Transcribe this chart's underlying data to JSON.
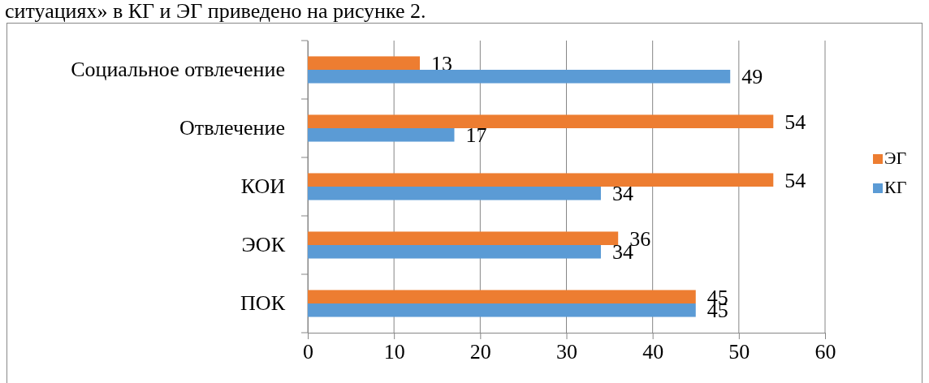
{
  "chart_data": {
    "type": "bar",
    "orientation": "horizontal",
    "annotations": [
      "ситуациях» в КГ и ЭГ приведено на рисунке 2."
    ],
    "categories": [
      "Социальное отвлечение",
      "Отвлечение",
      "КОИ",
      "ЭОК",
      "ПОК"
    ],
    "series": [
      {
        "name": "ЭГ",
        "color": "#ed7d31",
        "values": [
          13,
          54,
          54,
          36,
          45
        ]
      },
      {
        "name": "КГ",
        "color": "#5b9bd5",
        "values": [
          49,
          17,
          34,
          34,
          45
        ]
      }
    ],
    "xlim": [
      0,
      60
    ],
    "xticks": [
      0,
      10,
      20,
      30,
      40,
      50,
      60
    ],
    "grid": "x",
    "legend": "right",
    "data_labels": true
  }
}
